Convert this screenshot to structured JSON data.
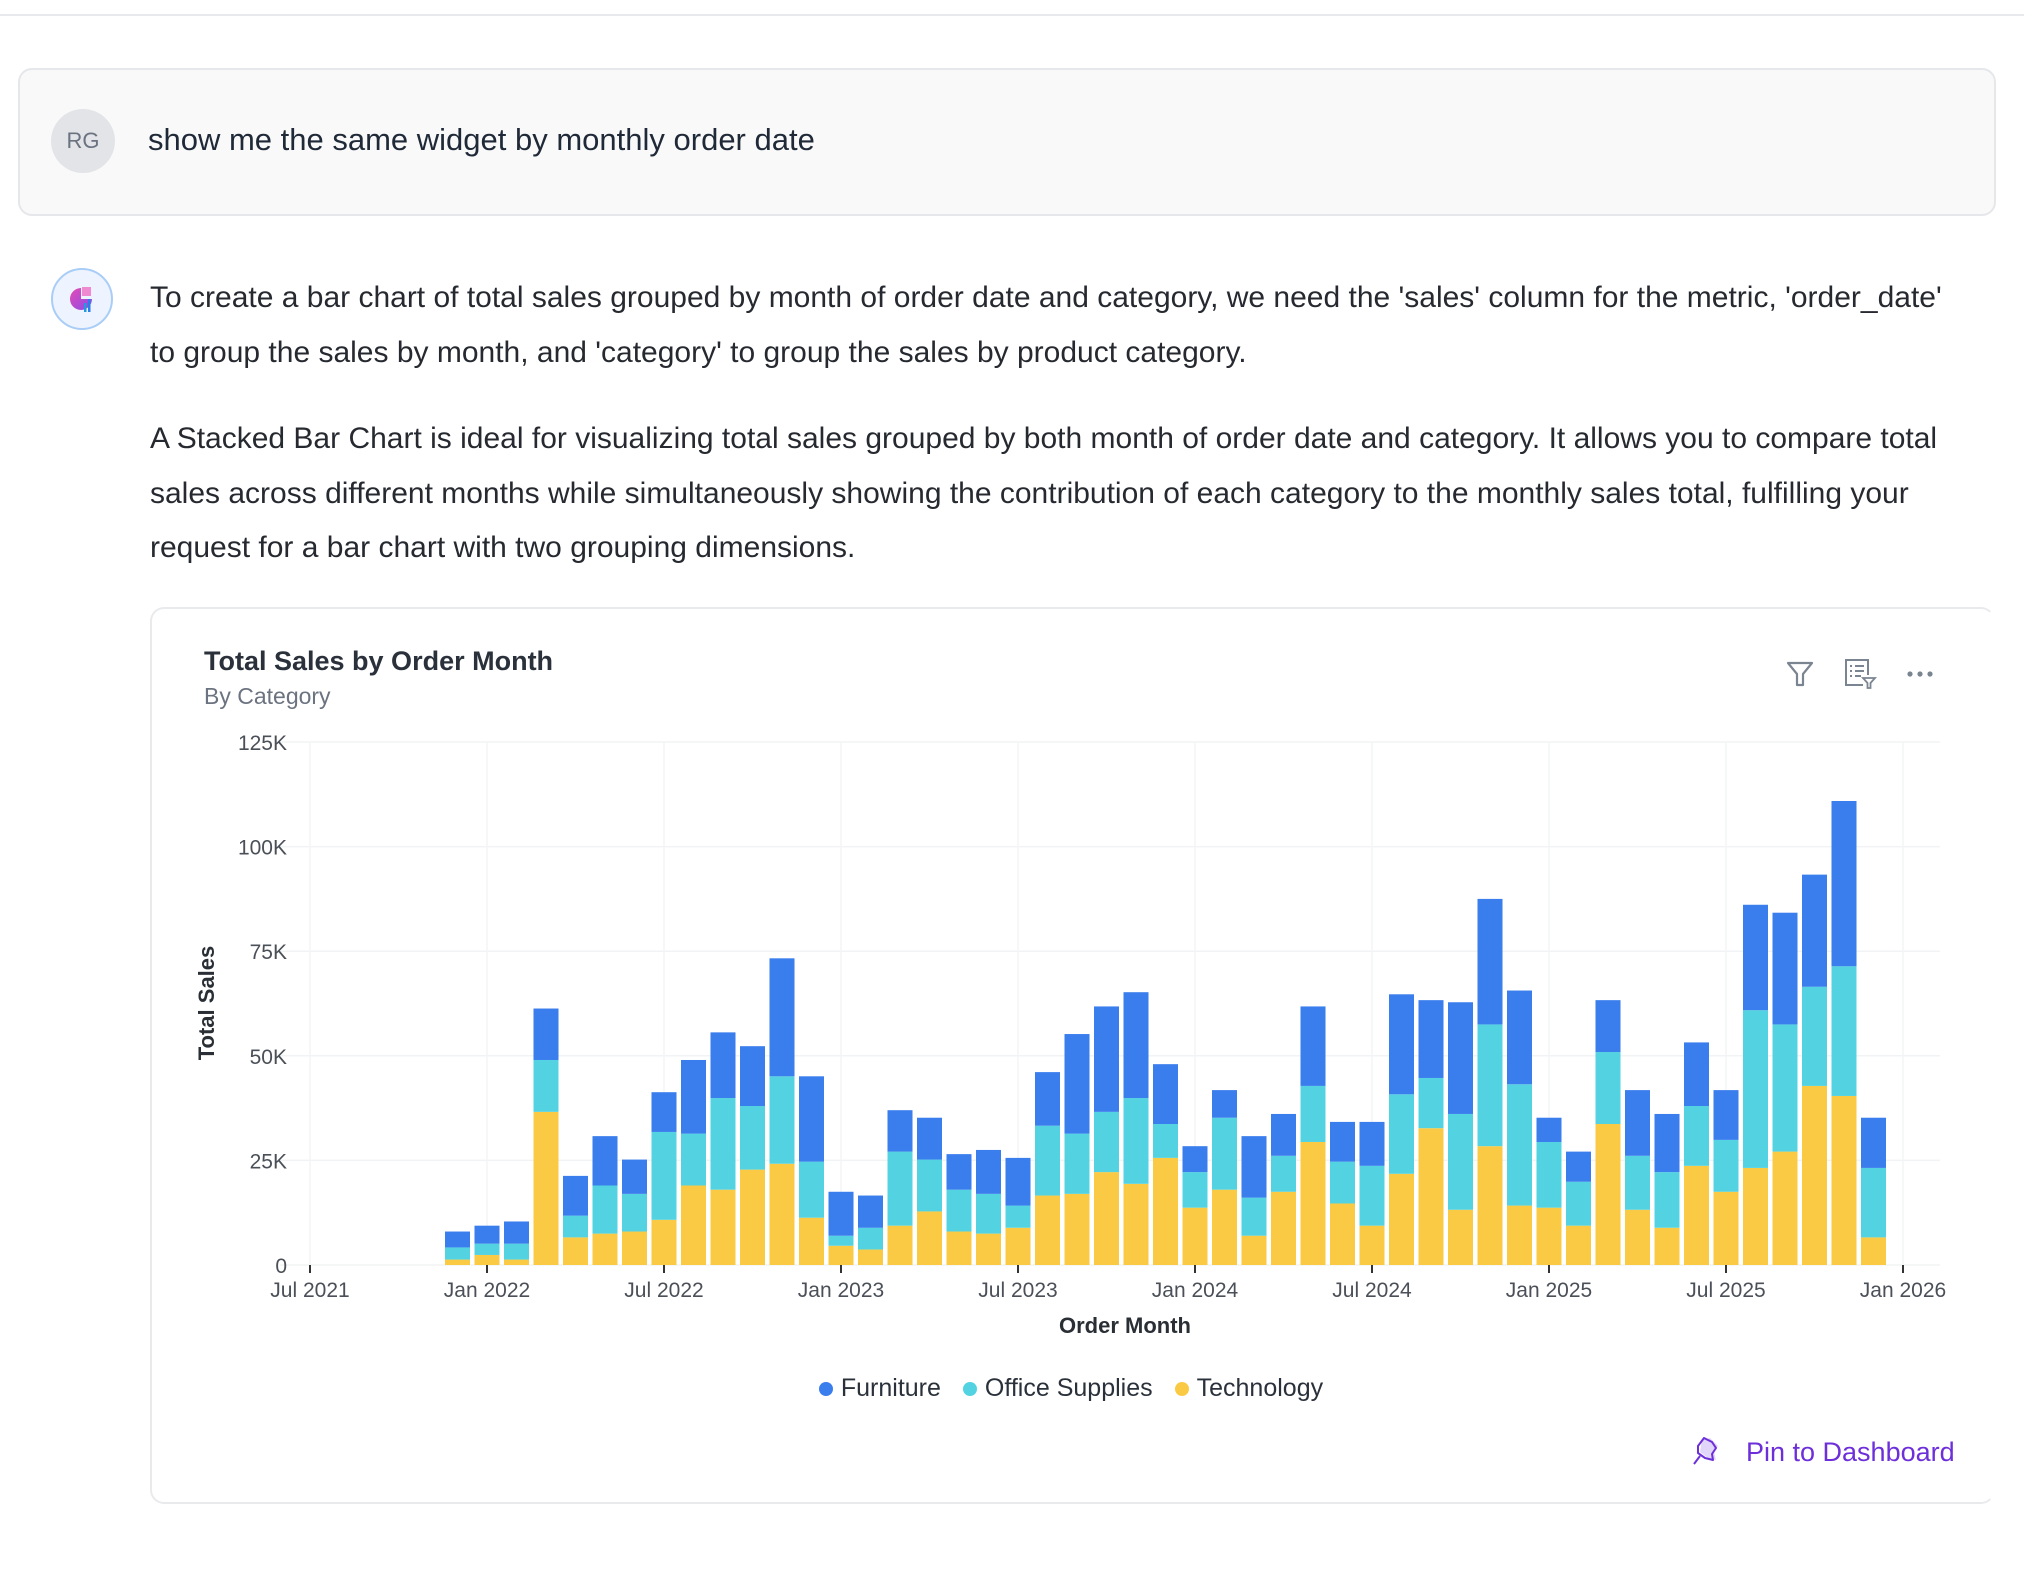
{
  "user_message": {
    "initials": "RG",
    "text": "show me the same widget by monthly order date"
  },
  "assistant_message": {
    "paragraphs": [
      "To create a bar chart of total sales grouped by month of order date and category, we need the 'sales' column for the metric, 'order_date' to group the sales by month, and 'category' to group the sales by product category.",
      "A Stacked Bar Chart is ideal for visualizing total sales grouped by both month of order date and category. It allows you to compare total sales across different months while simultaneously showing the contribution of each category to the monthly sales total, fulfilling your request for a bar chart with two grouping dimensions."
    ]
  },
  "widget": {
    "title": "Total Sales by Order Month",
    "subtitle": "By Category",
    "icons": [
      "filter-icon",
      "filtered-list-icon",
      "more-options-icon"
    ],
    "pin_label": "Pin to Dashboard",
    "accent": "#6d2fd9"
  },
  "chart_data": {
    "type": "bar",
    "stacked": true,
    "title": "Total Sales by Order Month",
    "subtitle": "By Category",
    "xlabel": "Order Month",
    "ylabel": "Total Sales",
    "ylim": [
      0,
      125000
    ],
    "value_unit_multiplier": 1000,
    "y_ticks": [
      {
        "value": 0,
        "label": "0"
      },
      {
        "value": 25,
        "label": "25K"
      },
      {
        "value": 50,
        "label": "50K"
      },
      {
        "value": 75,
        "label": "75K"
      },
      {
        "value": 100,
        "label": "100K"
      },
      {
        "value": 125,
        "label": "125K"
      }
    ],
    "x_ticks": [
      {
        "month_index": 0,
        "label": "Jul 2021"
      },
      {
        "month_index": 6,
        "label": "Jan 2022"
      },
      {
        "month_index": 12,
        "label": "Jul 2022"
      },
      {
        "month_index": 18,
        "label": "Jan 2023"
      },
      {
        "month_index": 24,
        "label": "Jul 2023"
      },
      {
        "month_index": 30,
        "label": "Jan 2024"
      },
      {
        "month_index": 36,
        "label": "Jul 2024"
      },
      {
        "month_index": 42,
        "label": "Jan 2025"
      },
      {
        "month_index": 48,
        "label": "Jul 2025"
      },
      {
        "month_index": 54,
        "label": "Jan 2026"
      }
    ],
    "first_month_index": 5,
    "categories": [
      "Dec 2021",
      "Jan 2022",
      "Feb 2022",
      "Mar 2022",
      "Apr 2022",
      "May 2022",
      "Jun 2022",
      "Jul 2022",
      "Aug 2022",
      "Sep 2022",
      "Oct 2022",
      "Nov 2022",
      "Dec 2022",
      "Jan 2023",
      "Feb 2023",
      "Mar 2023",
      "Apr 2023",
      "May 2023",
      "Jun 2023",
      "Jul 2023",
      "Aug 2023",
      "Sep 2023",
      "Oct 2023",
      "Nov 2023",
      "Dec 2023",
      "Jan 2024",
      "Feb 2024",
      "Mar 2024",
      "Apr 2024",
      "May 2024",
      "Jun 2024",
      "Jul 2024",
      "Aug 2024",
      "Sep 2024",
      "Oct 2024",
      "Nov 2024",
      "Dec 2024",
      "Jan 2025",
      "Feb 2025",
      "Mar 2025",
      "Apr 2025",
      "May 2025",
      "Jun 2025",
      "Jul 2025",
      "Aug 2025",
      "Sep 2025",
      "Oct 2025",
      "Nov 2025",
      "Dec 2025"
    ],
    "series": [
      {
        "name": "Technology",
        "color": "#fbca45",
        "values": [
          1.3,
          2.4,
          1.3,
          36.6,
          6.6,
          7.5,
          8.0,
          10.8,
          19.0,
          18.0,
          22.8,
          24.2,
          11.3,
          4.6,
          3.7,
          9.4,
          12.8,
          8.0,
          7.5,
          8.9,
          16.6,
          17.0,
          22.2,
          19.4,
          25.6,
          13.7,
          18.0,
          7.0,
          17.5,
          29.4,
          14.7,
          9.4,
          21.8,
          32.7,
          13.2,
          28.4,
          14.2,
          13.7,
          9.4,
          33.7,
          13.2,
          8.9,
          23.7,
          17.5,
          23.2,
          27.1,
          42.8,
          40.4,
          6.6
        ]
      },
      {
        "name": "Office Supplies",
        "color": "#53d3e1",
        "values": [
          2.9,
          2.7,
          3.8,
          12.4,
          5.2,
          11.5,
          9.0,
          21.0,
          12.4,
          21.9,
          15.2,
          20.9,
          13.4,
          2.4,
          5.2,
          17.7,
          12.4,
          10.0,
          9.5,
          5.3,
          16.7,
          14.4,
          14.4,
          20.5,
          8.1,
          8.5,
          17.2,
          9.1,
          8.6,
          13.4,
          10.0,
          14.3,
          19.0,
          12.0,
          22.9,
          29.1,
          29.0,
          15.7,
          10.5,
          17.2,
          12.9,
          13.3,
          14.3,
          12.4,
          37.7,
          30.4,
          23.7,
          31.0,
          16.6
        ]
      },
      {
        "name": "Furniture",
        "color": "#3a7ded",
        "values": [
          3.8,
          4.3,
          5.3,
          12.3,
          9.5,
          11.8,
          8.2,
          9.5,
          17.6,
          15.7,
          14.3,
          28.2,
          20.4,
          10.5,
          7.7,
          9.9,
          10.0,
          8.5,
          10.5,
          11.4,
          12.8,
          23.8,
          25.2,
          25.3,
          14.3,
          6.2,
          6.6,
          14.7,
          10.0,
          19.0,
          9.5,
          10.5,
          23.9,
          18.6,
          26.7,
          30.0,
          22.4,
          5.8,
          7.2,
          12.4,
          15.7,
          13.9,
          15.2,
          11.9,
          25.2,
          26.7,
          26.8,
          39.5,
          12.0
        ]
      }
    ],
    "legend": [
      "Furniture",
      "Office Supplies",
      "Technology"
    ],
    "legend_colors": [
      "#3a7ded",
      "#53d3e1",
      "#fbca45"
    ],
    "legend_placement": "bottom-center",
    "grid": true
  }
}
